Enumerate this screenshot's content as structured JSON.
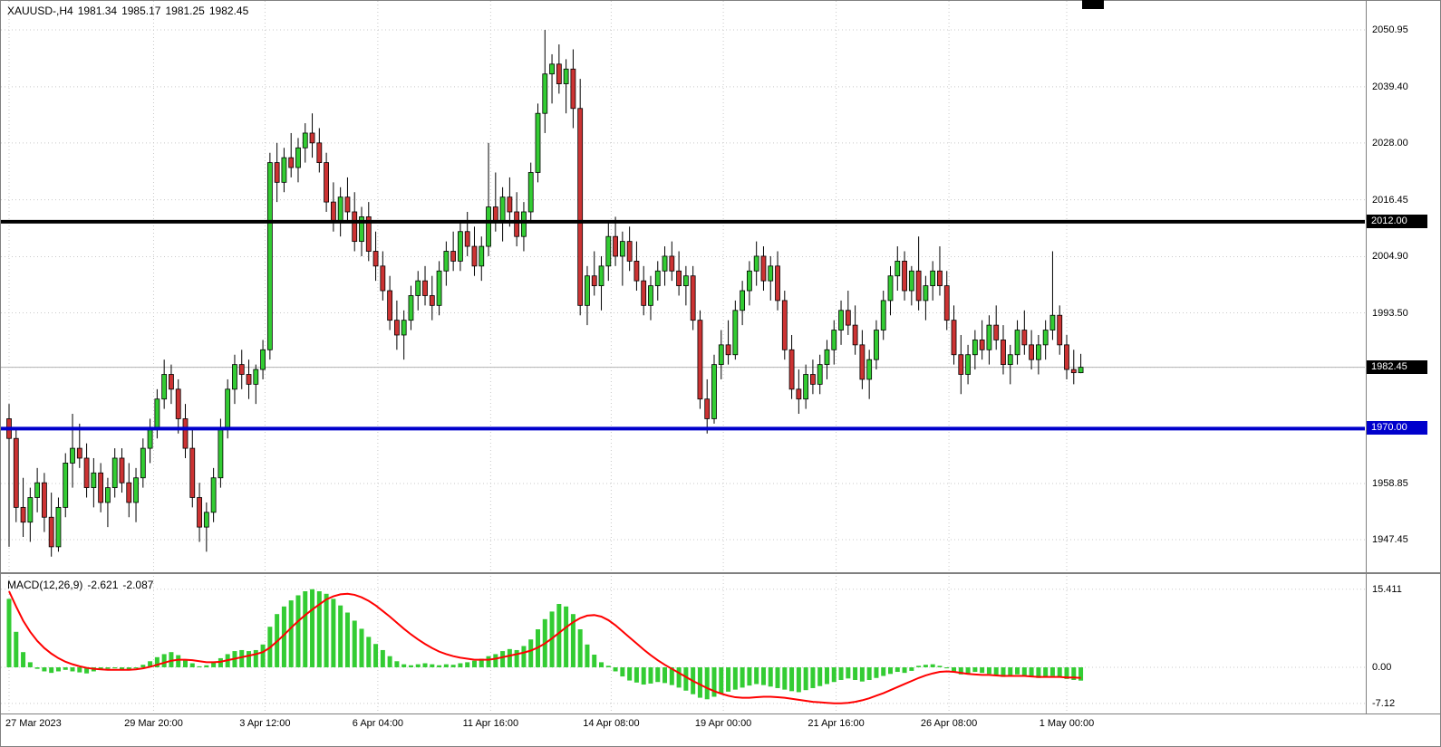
{
  "header": {
    "symbol_period": "XAUUSD-,H4",
    "open": "1981.34",
    "high": "1985.17",
    "low": "1981.25",
    "close": "1982.45"
  },
  "colors": {
    "background": "#ffffff",
    "frame": "#808080",
    "grid": "#c9c9c9",
    "candle_up": "#33cc33",
    "candle_down": "#cc3333",
    "candle_border": "#000000",
    "wick": "#000000",
    "macd_histogram": "#33cc33",
    "macd_signal": "#ff0000",
    "bid_line": "#b3b3b3",
    "hline_resistance": "#000000",
    "hline_support": "#0000cc",
    "tag_text": "#ffffff"
  },
  "price_axis": {
    "labels": [
      {
        "value": 2050.95,
        "label": "2050.95"
      },
      {
        "value": 2039.4,
        "label": "2039.40"
      },
      {
        "value": 2028.0,
        "label": "2028.00"
      },
      {
        "value": 2016.45,
        "label": "2016.45"
      },
      {
        "value": 2004.9,
        "label": "2004.90"
      },
      {
        "value": 1993.5,
        "label": "1993.50"
      },
      {
        "value": 1958.85,
        "label": "1958.85"
      },
      {
        "value": 1947.45,
        "label": "1947.45"
      }
    ],
    "tags": [
      {
        "value": 2012.0,
        "label": "2012.00",
        "color": "#000000",
        "name": "price-tag-resistance-2012"
      },
      {
        "value": 1982.45,
        "label": "1982.45",
        "color": "#000000",
        "name": "price-tag-bid-1982"
      },
      {
        "value": 1970.0,
        "label": "1970.00",
        "color": "#0000cc",
        "name": "price-tag-support-1970"
      }
    ],
    "grid_levels": [
      2050.95,
      2039.4,
      2028.0,
      2016.45,
      2004.9,
      1993.5,
      1982.45,
      1958.85,
      1947.45
    ]
  },
  "time_axis": {
    "ticks": [
      {
        "label": "27 Mar 2023",
        "i": 0
      },
      {
        "label": "29 Mar 20:00",
        "i": 20.5
      },
      {
        "label": "3 Apr 12:00",
        "i": 36.3
      },
      {
        "label": "6 Apr 04:00",
        "i": 52.3
      },
      {
        "label": "11 Apr 16:00",
        "i": 68.3
      },
      {
        "label": "14 Apr 08:00",
        "i": 85.4
      },
      {
        "label": "19 Apr 00:00",
        "i": 101.3
      },
      {
        "label": "21 Apr 16:00",
        "i": 117.3
      },
      {
        "label": "26 Apr 08:00",
        "i": 133.3
      },
      {
        "label": "1 May 00:00",
        "i": 150
      }
    ]
  },
  "hlines": [
    {
      "name": "resistance-line-2012",
      "price": 2012.0,
      "color": "#000000",
      "width": 4
    },
    {
      "name": "support-line-1970",
      "price": 1970.0,
      "color": "#0000cc",
      "width": 4
    }
  ],
  "current_price": {
    "value": 1982.45,
    "label": "1982.45"
  },
  "macd": {
    "title": "MACD(12,26,9)",
    "macd_value": "-2.621",
    "signal_value": "-2.087",
    "axis_labels": [
      {
        "value": 15.411,
        "label": "15.411"
      },
      {
        "value": 0,
        "label": "0.00"
      },
      {
        "value": -7.12,
        "label": "-7.12"
      }
    ],
    "grid_levels": [
      15.411,
      0,
      -7.12
    ]
  },
  "chart_data": {
    "type": "candlestick",
    "symbol": "XAUUSD-",
    "timeframe": "H4",
    "title": "XAUUSD- H4 candlestick chart with MACD(12,26,9) subwindow",
    "ylim": [
      1941.2,
      2056.6
    ],
    "macd_ylim": [
      -7.12,
      15.411
    ],
    "levels": {
      "resistance": 2012.0,
      "support": 1970.0,
      "bid": 1982.45
    },
    "x_tick_labels": [
      "27 Mar 2023",
      "29 Mar 20:00",
      "3 Apr 12:00",
      "6 Apr 04:00",
      "11 Apr 16:00",
      "14 Apr 08:00",
      "19 Apr 00:00",
      "21 Apr 16:00",
      "26 Apr 08:00",
      "1 May 00:00"
    ],
    "candles": [
      [
        1972,
        1975,
        1946,
        1968
      ],
      [
        1968,
        1970,
        1951,
        1954
      ],
      [
        1954,
        1960,
        1948,
        1951
      ],
      [
        1951,
        1958,
        1947,
        1956
      ],
      [
        1956,
        1962,
        1953,
        1959
      ],
      [
        1959,
        1961,
        1949,
        1952
      ],
      [
        1952,
        1957,
        1944,
        1946
      ],
      [
        1946,
        1956,
        1945,
        1954
      ],
      [
        1954,
        1965,
        1952,
        1963
      ],
      [
        1963,
        1973,
        1958,
        1966
      ],
      [
        1966,
        1971,
        1962,
        1964
      ],
      [
        1964,
        1967,
        1956,
        1958
      ],
      [
        1958,
        1964,
        1954,
        1961
      ],
      [
        1961,
        1963,
        1953,
        1955
      ],
      [
        1955,
        1960,
        1950,
        1958
      ],
      [
        1958,
        1966,
        1956,
        1964
      ],
      [
        1964,
        1966,
        1957,
        1959
      ],
      [
        1959,
        1963,
        1952,
        1955
      ],
      [
        1955,
        1962,
        1951,
        1960
      ],
      [
        1960,
        1968,
        1958,
        1966
      ],
      [
        1966,
        1972,
        1963,
        1970
      ],
      [
        1970,
        1978,
        1968,
        1976
      ],
      [
        1976,
        1984,
        1974,
        1981
      ],
      [
        1981,
        1983,
        1975,
        1978
      ],
      [
        1978,
        1980,
        1969,
        1972
      ],
      [
        1972,
        1975,
        1964,
        1966
      ],
      [
        1966,
        1970,
        1954,
        1956
      ],
      [
        1956,
        1959,
        1947,
        1950
      ],
      [
        1950,
        1955,
        1945,
        1953
      ],
      [
        1953,
        1962,
        1951,
        1960
      ],
      [
        1960,
        1972,
        1958,
        1970
      ],
      [
        1970,
        1980,
        1968,
        1978
      ],
      [
        1978,
        1985,
        1975,
        1983
      ],
      [
        1983,
        1986,
        1978,
        1981
      ],
      [
        1981,
        1984,
        1976,
        1979
      ],
      [
        1979,
        1983,
        1975,
        1982
      ],
      [
        1982,
        1988,
        1980,
        1986
      ],
      [
        1986,
        2026,
        1984,
        2024
      ],
      [
        2024,
        2028,
        2016,
        2020
      ],
      [
        2020,
        2027,
        2018,
        2025
      ],
      [
        2025,
        2030,
        2021,
        2023
      ],
      [
        2023,
        2029,
        2020,
        2027
      ],
      [
        2027,
        2032,
        2024,
        2030
      ],
      [
        2030,
        2034,
        2025,
        2028
      ],
      [
        2028,
        2031,
        2022,
        2024
      ],
      [
        2024,
        2026,
        2014,
        2016
      ],
      [
        2016,
        2020,
        2010,
        2012
      ],
      [
        2012,
        2019,
        2009,
        2017
      ],
      [
        2017,
        2021,
        2012,
        2014
      ],
      [
        2014,
        2018,
        2006,
        2008
      ],
      [
        2008,
        2015,
        2005,
        2013
      ],
      [
        2013,
        2016,
        2004,
        2006
      ],
      [
        2006,
        2010,
        2000,
        2003
      ],
      [
        2003,
        2006,
        1996,
        1998
      ],
      [
        1998,
        2001,
        1990,
        1992
      ],
      [
        1992,
        1996,
        1986,
        1989
      ],
      [
        1989,
        1994,
        1984,
        1992
      ],
      [
        1992,
        1999,
        1990,
        1997
      ],
      [
        1997,
        2002,
        1994,
        2000
      ],
      [
        2000,
        2003,
        1995,
        1997
      ],
      [
        1997,
        2001,
        1992,
        1995
      ],
      [
        1995,
        2004,
        1993,
        2002
      ],
      [
        2002,
        2008,
        1999,
        2006
      ],
      [
        2006,
        2010,
        2002,
        2004
      ],
      [
        2004,
        2012,
        2002,
        2010
      ],
      [
        2010,
        2014,
        2005,
        2007
      ],
      [
        2007,
        2011,
        2001,
        2003
      ],
      [
        2003,
        2009,
        2000,
        2007
      ],
      [
        2007,
        2028,
        2005,
        2015
      ],
      [
        2015,
        2022,
        2010,
        2012
      ],
      [
        2012,
        2019,
        2008,
        2017
      ],
      [
        2017,
        2021,
        2011,
        2014
      ],
      [
        2014,
        2018,
        2007,
        2009
      ],
      [
        2009,
        2016,
        2006,
        2014
      ],
      [
        2014,
        2024,
        2012,
        2022
      ],
      [
        2022,
        2036,
        2020,
        2034
      ],
      [
        2034,
        2050.95,
        2030,
        2042
      ],
      [
        2042,
        2046,
        2036,
        2044
      ],
      [
        2044,
        2048,
        2038,
        2040
      ],
      [
        2040,
        2045,
        2034,
        2043
      ],
      [
        2043,
        2047,
        2031,
        2035
      ],
      [
        2035,
        2041,
        1993,
        1995
      ],
      [
        1995,
        2003,
        1991,
        2001
      ],
      [
        2001,
        2006,
        1997,
        1999
      ],
      [
        1999,
        2005,
        1994,
        2003
      ],
      [
        2003,
        2012,
        2000,
        2009
      ],
      [
        2009,
        2013,
        2003,
        2005
      ],
      [
        2005,
        2010,
        1999,
        2008
      ],
      [
        2008,
        2011,
        2002,
        2004
      ],
      [
        2004,
        2008,
        1998,
        2000
      ],
      [
        2000,
        2003,
        1993,
        1995
      ],
      [
        1995,
        2001,
        1992,
        1999
      ],
      [
        1999,
        2004,
        1996,
        2002
      ],
      [
        2002,
        2007,
        1999,
        2005
      ],
      [
        2005,
        2008,
        2000,
        2002
      ],
      [
        2002,
        2006,
        1997,
        1999
      ],
      [
        1999,
        2003,
        1995,
        2001
      ],
      [
        2001,
        2003,
        1990,
        1992
      ],
      [
        1992,
        1994,
        1974,
        1976
      ],
      [
        1976,
        1980,
        1969,
        1972
      ],
      [
        1972,
        1985,
        1971,
        1983
      ],
      [
        1983,
        1990,
        1980,
        1987
      ],
      [
        1987,
        1992,
        1983,
        1985
      ],
      [
        1985,
        1996,
        1984,
        1994
      ],
      [
        1994,
        2000,
        1991,
        1998
      ],
      [
        1998,
        2004,
        1995,
        2002
      ],
      [
        2002,
        2008,
        1999,
        2005
      ],
      [
        2005,
        2007,
        1998,
        2000
      ],
      [
        2000,
        2005,
        1996,
        2003
      ],
      [
        2003,
        2006,
        1994,
        1996
      ],
      [
        1996,
        1998,
        1984,
        1986
      ],
      [
        1986,
        1989,
        1976,
        1978
      ],
      [
        1978,
        1982,
        1973,
        1976
      ],
      [
        1976,
        1983,
        1974,
        1981
      ],
      [
        1981,
        1984,
        1977,
        1979
      ],
      [
        1979,
        1985,
        1977,
        1983
      ],
      [
        1983,
        1988,
        1980,
        1986
      ],
      [
        1986,
        1992,
        1983,
        1990
      ],
      [
        1990,
        1996,
        1987,
        1994
      ],
      [
        1994,
        1998,
        1989,
        1991
      ],
      [
        1991,
        1995,
        1985,
        1987
      ],
      [
        1987,
        1990,
        1978,
        1980
      ],
      [
        1980,
        1986,
        1976,
        1984
      ],
      [
        1984,
        1992,
        1982,
        1990
      ],
      [
        1990,
        1998,
        1988,
        1996
      ],
      [
        1996,
        2003,
        1993,
        2001
      ],
      [
        2001,
        2007,
        1998,
        2004
      ],
      [
        2004,
        2006,
        1996,
        1998
      ],
      [
        1998,
        2003,
        1995,
        2002
      ],
      [
        2002,
        2009,
        1994,
        1996
      ],
      [
        1996,
        2001,
        1992,
        1999
      ],
      [
        1999,
        2004,
        1996,
        2002
      ],
      [
        2002,
        2007,
        1997,
        1999
      ],
      [
        1999,
        2002,
        1990,
        1992
      ],
      [
        1992,
        1995,
        1983,
        1985
      ],
      [
        1985,
        1989,
        1977,
        1981
      ],
      [
        1981,
        1987,
        1979,
        1985
      ],
      [
        1985,
        1990,
        1982,
        1988
      ],
      [
        1988,
        1992,
        1984,
        1986
      ],
      [
        1986,
        1993,
        1983,
        1991
      ],
      [
        1991,
        1995,
        1986,
        1988
      ],
      [
        1988,
        1991,
        1981,
        1983
      ],
      [
        1983,
        1987,
        1979,
        1985
      ],
      [
        1985,
        1992,
        1983,
        1990
      ],
      [
        1990,
        1994,
        1985,
        1987
      ],
      [
        1987,
        1990,
        1982,
        1984
      ],
      [
        1984,
        1989,
        1981,
        1987
      ],
      [
        1987,
        1992,
        1984,
        1990
      ],
      [
        1990,
        2006,
        1988,
        1993
      ],
      [
        1993,
        1995,
        1985,
        1987
      ],
      [
        1987,
        1989,
        1980,
        1982
      ],
      [
        1982,
        1986,
        1979,
        1981.34
      ],
      [
        1981.34,
        1985.17,
        1981.25,
        1982.45
      ]
    ],
    "macd_histogram": [
      13.5,
      7.0,
      3.0,
      1.0,
      -0.3,
      -0.8,
      -1.1,
      -0.8,
      -0.5,
      -0.8,
      -1.0,
      -1.2,
      -0.8,
      -0.5,
      -0.3,
      -0.2,
      -0.4,
      -0.6,
      -0.2,
      0.5,
      1.2,
      2.0,
      2.6,
      3.0,
      2.4,
      1.6,
      0.8,
      0.2,
      0.4,
      1.0,
      1.8,
      2.6,
      3.2,
      3.4,
      3.2,
      3.4,
      4.5,
      8.0,
      10.5,
      12.0,
      13.2,
      14.2,
      15.0,
      15.4,
      15.0,
      14.5,
      13.5,
      12.2,
      10.8,
      9.2,
      7.6,
      6.0,
      4.6,
      3.4,
      2.2,
      1.2,
      0.6,
      0.4,
      0.6,
      0.8,
      0.6,
      0.4,
      0.6,
      0.5,
      0.8,
      1.0,
      1.3,
      1.7,
      2.2,
      2.6,
      3.2,
      3.6,
      3.4,
      4.2,
      5.5,
      7.5,
      9.5,
      11.0,
      12.5,
      12.0,
      10.5,
      7.5,
      4.5,
      2.5,
      1.0,
      0.3,
      -0.8,
      -1.8,
      -2.6,
      -3.0,
      -3.4,
      -3.2,
      -2.9,
      -3.1,
      -3.5,
      -4.0,
      -4.6,
      -5.3,
      -6.0,
      -6.3,
      -5.8,
      -5.2,
      -4.8,
      -4.4,
      -4.0,
      -3.6,
      -3.3,
      -3.5,
      -3.8,
      -4.1,
      -4.4,
      -4.7,
      -4.9,
      -4.5,
      -4.1,
      -3.7,
      -3.3,
      -2.9,
      -2.5,
      -2.2,
      -2.5,
      -2.8,
      -2.5,
      -2.1,
      -1.7,
      -1.3,
      -0.9,
      -1.1,
      -0.7,
      0.3,
      0.5,
      0.6,
      0.3,
      -0.2,
      -0.8,
      -1.4,
      -1.2,
      -0.9,
      -1.1,
      -1.3,
      -1.6,
      -1.9,
      -1.7,
      -1.4,
      -1.6,
      -1.9,
      -2.1,
      -1.9,
      -1.7,
      -2.0,
      -2.3,
      -2.5,
      -2.621
    ],
    "macd_signal": [
      15.0,
      12.0,
      9.2,
      7.0,
      5.2,
      3.8,
      2.7,
      1.8,
      1.1,
      0.6,
      0.2,
      -0.1,
      -0.3,
      -0.4,
      -0.5,
      -0.5,
      -0.5,
      -0.5,
      -0.4,
      -0.2,
      0.1,
      0.5,
      0.9,
      1.3,
      1.5,
      1.5,
      1.4,
      1.2,
      1.0,
      1.0,
      1.1,
      1.4,
      1.7,
      2.0,
      2.3,
      2.6,
      3.0,
      3.9,
      5.1,
      6.4,
      7.8,
      9.1,
      10.3,
      11.4,
      12.4,
      13.4,
      14.0,
      14.4,
      14.5,
      14.3,
      13.8,
      13.1,
      12.2,
      11.1,
      10.0,
      8.8,
      7.6,
      6.5,
      5.5,
      4.6,
      3.8,
      3.1,
      2.6,
      2.2,
      1.9,
      1.7,
      1.5,
      1.5,
      1.5,
      1.7,
      2.0,
      2.3,
      2.6,
      2.9,
      3.3,
      3.9,
      4.7,
      5.7,
      6.8,
      7.9,
      8.9,
      9.7,
      10.2,
      10.3,
      10.0,
      9.3,
      8.3,
      7.1,
      5.9,
      4.7,
      3.5,
      2.4,
      1.4,
      0.5,
      -0.3,
      -1.1,
      -1.9,
      -2.7,
      -3.4,
      -4.1,
      -4.7,
      -5.2,
      -5.6,
      -5.9,
      -6.0,
      -6.0,
      -5.9,
      -5.8,
      -5.8,
      -5.9,
      -6.0,
      -6.2,
      -6.4,
      -6.6,
      -6.8,
      -6.9,
      -7.0,
      -7.1,
      -7.1,
      -7.0,
      -6.8,
      -6.5,
      -6.1,
      -5.6,
      -5.1,
      -4.5,
      -3.9,
      -3.3,
      -2.7,
      -2.1,
      -1.6,
      -1.2,
      -0.9,
      -0.8,
      -0.9,
      -1.1,
      -1.3,
      -1.4,
      -1.5,
      -1.5,
      -1.6,
      -1.7,
      -1.7,
      -1.7,
      -1.7,
      -1.8,
      -1.9,
      -1.9,
      -1.9,
      -1.9,
      -2.0,
      -2.0,
      -2.087
    ]
  }
}
